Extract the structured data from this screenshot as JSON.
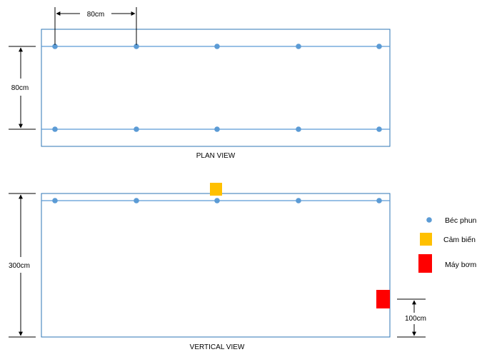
{
  "plan_view": {
    "caption": "PLAN VIEW",
    "spacing_label": "80cm",
    "row_gap_label": "80cm",
    "rows": 2,
    "nozzles_per_row": 5
  },
  "vertical_view": {
    "caption": "VERTICAL VIEW",
    "height_label": "300cm",
    "pump_height_label": "100cm",
    "nozzles": 5
  },
  "legend": [
    {
      "label": "Béc phun",
      "kind": "nozzle",
      "color": "#5B9BD5"
    },
    {
      "label": "Cảm biến",
      "kind": "sensor",
      "color": "#FFC000"
    },
    {
      "label": "Máy bơm",
      "kind": "pump",
      "color": "#FF0000"
    }
  ],
  "colors": {
    "frame": "#2E75B6",
    "pipe": "#5B9BD5",
    "nozzle": "#5B9BD5",
    "sensor": "#FFC000",
    "pump": "#FF0000",
    "dimension": "#000000"
  }
}
